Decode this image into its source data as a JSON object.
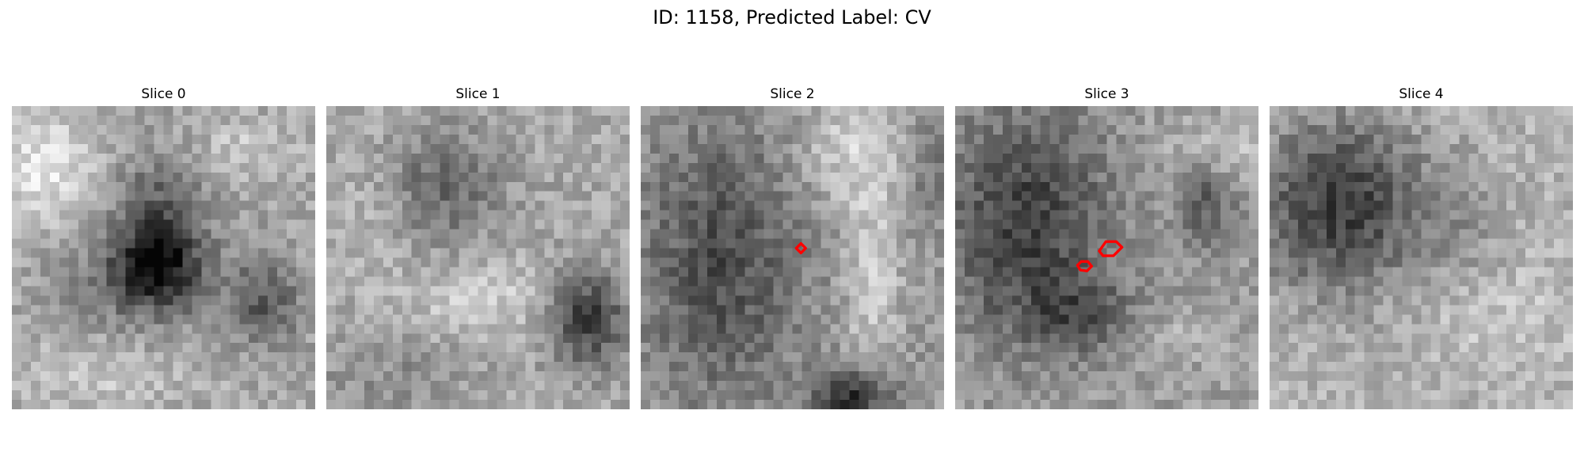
{
  "figure": {
    "title": "ID: 1158, Predicted Label: CV"
  },
  "overlay_color": "#ff0000",
  "slices": [
    {
      "label": "Slice 0",
      "image": "grayscale CT slice",
      "has_contour": false
    },
    {
      "label": "Slice 1",
      "image": "grayscale CT slice",
      "has_contour": false
    },
    {
      "label": "Slice 2",
      "image": "grayscale CT slice",
      "has_contour": true
    },
    {
      "label": "Slice 3",
      "image": "grayscale CT slice",
      "has_contour": true
    },
    {
      "label": "Slice 4",
      "image": "grayscale CT slice",
      "has_contour": false
    }
  ]
}
